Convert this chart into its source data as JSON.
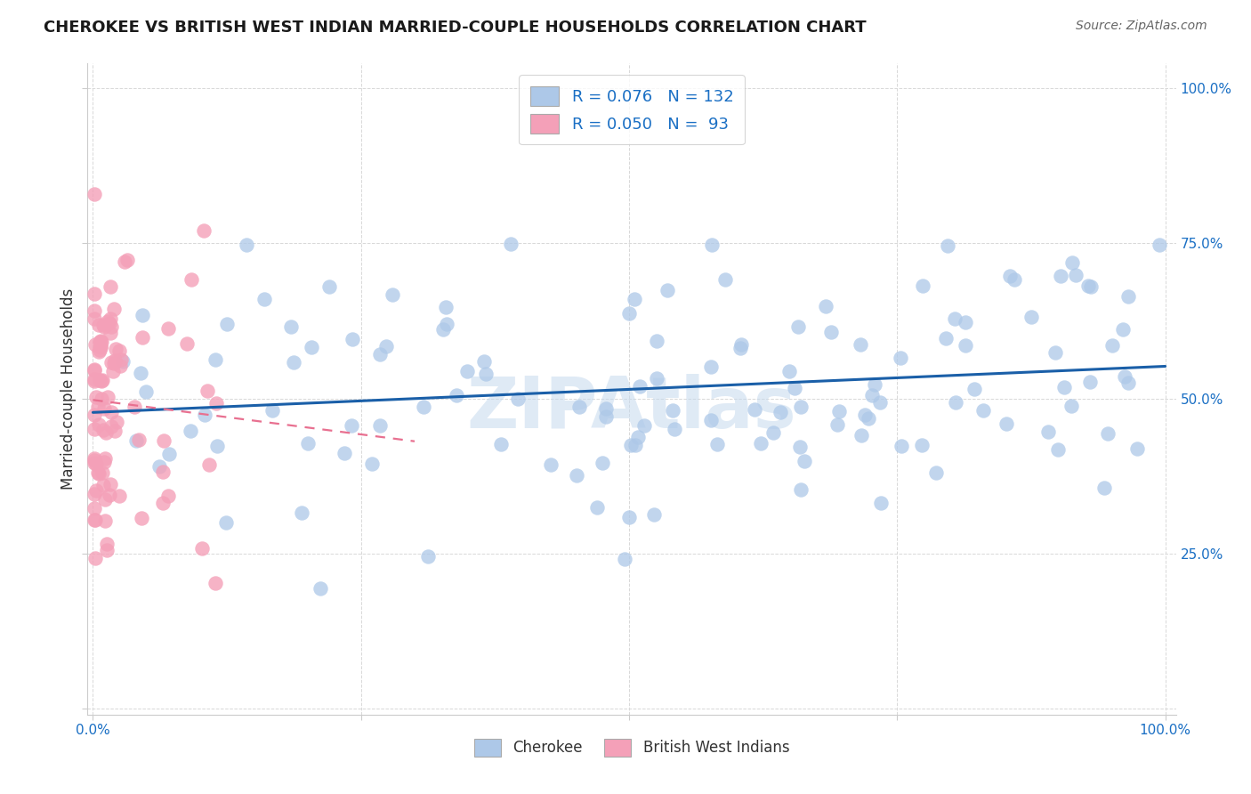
{
  "title": "CHEROKEE VS BRITISH WEST INDIAN MARRIED-COUPLE HOUSEHOLDS CORRELATION CHART",
  "source": "Source: ZipAtlas.com",
  "ylabel": "Married-couple Households",
  "cherokee_color": "#adc8e8",
  "bwi_color": "#f4a0b8",
  "trendline_cherokee_color": "#1a5fa8",
  "trendline_bwi_color": "#e87090",
  "watermark": "ZIPAtlas",
  "background_color": "#ffffff",
  "grid_color": "#d8d8d8",
  "legend_r_cherokee": "0.076",
  "legend_n_cherokee": "132",
  "legend_r_bwi": "0.050",
  "legend_n_bwi": "93",
  "tick_color": "#1a6fc4",
  "cherokee_seed": 12345,
  "bwi_seed": 54321
}
